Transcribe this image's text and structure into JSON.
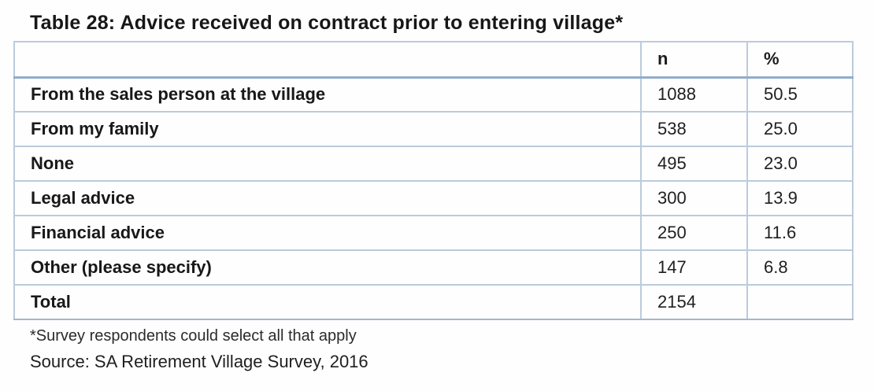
{
  "title": "Table 28: Advice received on contract prior to entering village*",
  "table": {
    "headers": [
      "",
      "n",
      "%"
    ],
    "rows": [
      {
        "label": "From the sales person at the village",
        "n": "1088",
        "pct": "50.5"
      },
      {
        "label": "From my family",
        "n": "538",
        "pct": "25.0"
      },
      {
        "label": "None",
        "n": "495",
        "pct": "23.0"
      },
      {
        "label": "Legal advice",
        "n": "300",
        "pct": "13.9"
      },
      {
        "label": "Financial advice",
        "n": "250",
        "pct": "11.6"
      },
      {
        "label": "Other (please specify)",
        "n": "147",
        "pct": "6.8"
      },
      {
        "label": "Total",
        "n": "2154",
        "pct": ""
      }
    ]
  },
  "footnotes": {
    "note": "*Survey respondents could select all that apply",
    "source": "Source: SA Retirement Village Survey, 2016"
  },
  "colors": {
    "border_light": "#bccbdc",
    "border_heavy": "#92adc9",
    "text": "#1c1c1c"
  }
}
